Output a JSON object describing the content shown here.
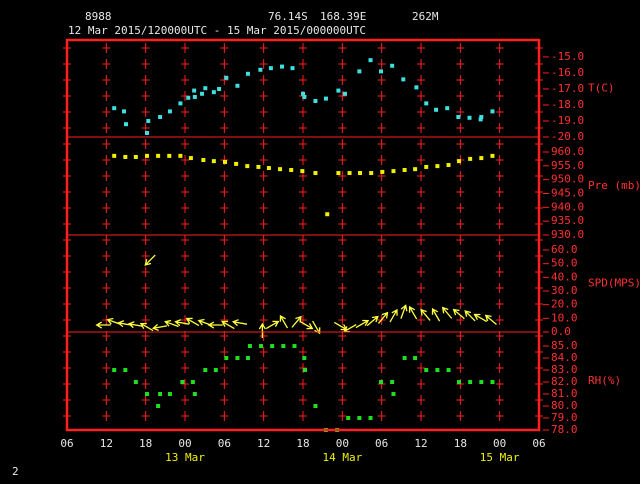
{
  "header": {
    "station": "8988",
    "latitude": "76.14S",
    "longitude": "168.39E",
    "elevation": "262M",
    "period": "12 Mar 2015/120000UTC - 15 Mar 2015/000000UTC",
    "page_number": "2"
  },
  "chart_data": [
    {
      "type": "scatter",
      "ylabel": "T(C)",
      "color": "#40e0e0",
      "xlim": [
        6,
        78
      ],
      "ylim": [
        -20,
        -13.94
      ],
      "yticks": [
        {
          "value": -15,
          "label": "-15.0"
        },
        {
          "value": -16,
          "label": "-16.0"
        },
        {
          "value": -17,
          "label": "-17.0"
        },
        {
          "value": -18,
          "label": "-18.0"
        },
        {
          "value": -19,
          "label": "-19.0"
        },
        {
          "value": -20,
          "label": "-20.0"
        }
      ],
      "x": [
        13.2,
        14.7,
        15.0,
        18.2,
        18.4,
        20.2,
        21.7,
        23.3,
        24.5,
        25.4,
        25.5,
        26.6,
        27.1,
        28.4,
        29.2,
        30.3,
        32.0,
        33.6,
        35.5,
        37.1,
        38.8,
        40.4,
        42.0,
        42.2,
        43.9,
        45.5,
        47.4,
        48.4,
        50.6,
        52.3,
        53.9,
        55.6,
        57.3,
        59.3,
        60.8,
        62.3,
        64.0,
        65.7,
        67.4,
        69.1,
        69.2,
        70.9
      ],
      "values": [
        -18.2,
        -18.4,
        -19.2,
        -19.75,
        -19.0,
        -18.75,
        -18.4,
        -17.9,
        -17.55,
        -17.1,
        -17.5,
        -17.3,
        -16.95,
        -17.2,
        -17.0,
        -16.3,
        -16.8,
        -16.05,
        -15.8,
        -15.7,
        -15.6,
        -15.7,
        -17.3,
        -17.5,
        -17.75,
        -17.6,
        -17.1,
        -17.3,
        -15.9,
        -15.2,
        -15.9,
        -15.55,
        -16.4,
        -16.9,
        -17.9,
        -18.3,
        -18.2,
        -18.75,
        -18.8,
        -18.9,
        -18.75,
        -18.4
      ]
    },
    {
      "type": "scatter",
      "ylabel": "Pre (mb)",
      "color": "#f0f000",
      "xlim": [
        6,
        78
      ],
      "ylim": [
        930,
        965.42
      ],
      "yticks": [
        {
          "value": 960,
          "label": "960.0"
        },
        {
          "value": 955,
          "label": "955.0"
        },
        {
          "value": 950,
          "label": "950.0"
        },
        {
          "value": 945,
          "label": "945.0"
        },
        {
          "value": 940,
          "label": "940.0"
        },
        {
          "value": 935,
          "label": "935.0"
        },
        {
          "value": 930,
          "label": "930.0"
        }
      ],
      "x": [
        13.2,
        14.9,
        16.5,
        18.2,
        19.9,
        21.6,
        23.3,
        24.9,
        26.8,
        28.4,
        30.1,
        31.8,
        33.5,
        35.2,
        36.8,
        38.5,
        40.2,
        41.9,
        43.9,
        45.7,
        47.4,
        49.1,
        50.7,
        52.4,
        54.1,
        55.8,
        57.5,
        59.1,
        60.8,
        62.5,
        64.2,
        65.8,
        67.5,
        69.2,
        70.9
      ],
      "values": [
        958.6,
        958.2,
        958.2,
        958.6,
        958.6,
        958.6,
        958.6,
        957.8,
        957.1,
        956.7,
        956.4,
        955.7,
        954.9,
        954.6,
        954.2,
        953.8,
        953.5,
        953.1,
        952.4,
        937.5,
        952.4,
        952.4,
        952.4,
        952.4,
        952.8,
        953.1,
        953.5,
        953.8,
        954.6,
        954.9,
        955.3,
        956.7,
        957.5,
        957.8,
        958.6
      ]
    },
    {
      "type": "quiver",
      "ylabel": "SPD(MPS)",
      "color": "#ffff40",
      "xlim": [
        6,
        78
      ],
      "ylim": [
        0,
        70.98
      ],
      "yticks": [
        {
          "value": 60,
          "label": "60.0"
        },
        {
          "value": 50,
          "label": "50.0"
        },
        {
          "value": 40,
          "label": "40.0"
        },
        {
          "value": 30,
          "label": "30.0"
        },
        {
          "value": 20,
          "label": "20.0"
        },
        {
          "value": 10,
          "label": "10.0"
        },
        {
          "value": 0,
          "label": "0.0"
        }
      ],
      "x": [
        11.6,
        13.2,
        14.9,
        16.5,
        18.2,
        18.7,
        20.2,
        22.0,
        23.6,
        25.2,
        27.1,
        28.7,
        30.6,
        32.4,
        35.8,
        37.3,
        39.1,
        41.0,
        42.5,
        44.0,
        47.7,
        49.2,
        51.0,
        52.6,
        54.2,
        55.8,
        57.3,
        58.8,
        60.7,
        62.3,
        64.0,
        65.8,
        67.5,
        69.1,
        70.7
      ],
      "values": [
        5.1,
        7.3,
        5.8,
        5.1,
        3.6,
        52.7,
        3.6,
        5.8,
        6.6,
        7.3,
        6.6,
        5.1,
        5.1,
        6.6,
        0.7,
        5.1,
        7.3,
        7.3,
        5.1,
        3.6,
        4.4,
        2.9,
        5.8,
        8.0,
        10.2,
        11.7,
        14.6,
        13.9,
        12.4,
        12.4,
        13.9,
        13.1,
        11.7,
        10.2,
        8.8
      ],
      "directions": [
        270,
        290,
        280,
        280,
        300,
        225,
        260,
        290,
        280,
        300,
        290,
        270,
        300,
        280,
        0,
        60,
        330,
        40,
        120,
        150,
        120,
        240,
        60,
        50,
        40,
        30,
        20,
        330,
        320,
        330,
        320,
        310,
        315,
        300,
        310
      ]
    },
    {
      "type": "scatter",
      "ylabel": "RH(%)",
      "color": "#20e020",
      "xlim": [
        6,
        78
      ],
      "ylim": [
        78,
        86.17
      ],
      "yticks": [
        {
          "value": 85,
          "label": "85.0"
        },
        {
          "value": 84,
          "label": "84.0"
        },
        {
          "value": 83,
          "label": "83.0"
        },
        {
          "value": 82,
          "label": "82.0"
        },
        {
          "value": 81,
          "label": "81.0"
        },
        {
          "value": 80,
          "label": "80.0"
        },
        {
          "value": 79,
          "label": "79.0"
        },
        {
          "value": 78,
          "label": "78.0"
        }
      ],
      "x": [
        13.2,
        14.9,
        16.5,
        18.2,
        19.9,
        20.2,
        21.7,
        23.6,
        25.2,
        25.5,
        27.1,
        28.7,
        30.3,
        32.0,
        33.6,
        33.9,
        35.6,
        37.3,
        39.0,
        40.7,
        42.2,
        42.3,
        43.9,
        45.5,
        47.2,
        48.9,
        50.6,
        52.3,
        53.9,
        55.6,
        55.8,
        57.5,
        59.1,
        60.8,
        62.5,
        64.2,
        65.8,
        67.5,
        69.2,
        70.9
      ],
      "values": [
        83,
        83,
        82,
        81,
        80,
        81,
        81,
        82,
        82,
        81,
        83,
        83,
        84,
        84,
        84,
        85,
        85,
        85,
        85,
        85,
        84,
        83,
        80,
        78,
        78,
        79,
        79,
        79,
        82,
        82,
        81,
        84,
        84,
        83,
        83,
        83,
        82,
        82,
        82,
        82
      ],
      "xticks": [
        {
          "value": 6,
          "label": "06"
        },
        {
          "value": 12,
          "label": "12"
        },
        {
          "value": 18,
          "label": "18"
        },
        {
          "value": 24,
          "label": "00"
        },
        {
          "value": 30,
          "label": "06"
        },
        {
          "value": 36,
          "label": "12"
        },
        {
          "value": 42,
          "label": "18"
        },
        {
          "value": 48,
          "label": "00"
        },
        {
          "value": 54,
          "label": "06"
        },
        {
          "value": 60,
          "label": "12"
        },
        {
          "value": 66,
          "label": "18"
        },
        {
          "value": 72,
          "label": "00"
        },
        {
          "value": 78,
          "label": "06"
        }
      ],
      "day_labels": [
        {
          "value": 24,
          "label": "13 Mar"
        },
        {
          "value": 48,
          "label": "14 Mar"
        },
        {
          "value": 72,
          "label": "15 Mar"
        }
      ]
    }
  ]
}
